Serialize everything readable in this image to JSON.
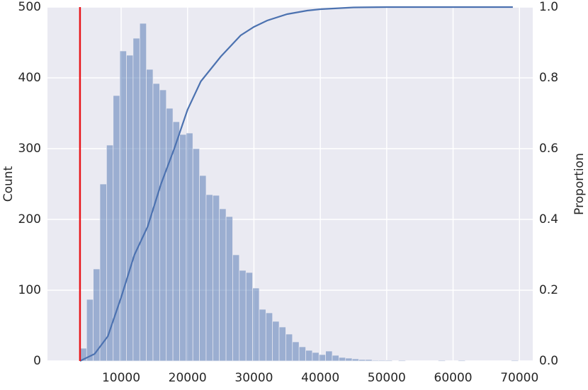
{
  "chart_data": {
    "type": "histogram",
    "bins": [
      3800,
      4800,
      5800,
      6800,
      7800,
      8800,
      9800,
      10800,
      11800,
      12800,
      13800,
      14800,
      15800,
      16800,
      17800,
      18800,
      19800,
      20800,
      21800,
      22800,
      23800,
      24800,
      25800,
      26800,
      27800,
      28800,
      29800,
      30800,
      31800,
      32800,
      33800,
      34800,
      35800,
      36800,
      37800,
      38800,
      39800,
      40800,
      41800,
      42800,
      43800,
      44800,
      45800,
      46800,
      47800,
      48800,
      49800,
      50800,
      51800,
      52800,
      53800,
      54800,
      55800,
      56800,
      57800,
      58800,
      59800,
      60800,
      61800,
      62800,
      63800,
      64800,
      65800,
      66800,
      67800,
      68800,
      69800
    ],
    "values": [
      18,
      87,
      130,
      250,
      305,
      375,
      438,
      432,
      456,
      477,
      412,
      392,
      383,
      357,
      338,
      320,
      322,
      300,
      262,
      235,
      234,
      215,
      204,
      150,
      128,
      125,
      103,
      73,
      68,
      56,
      48,
      38,
      27,
      20,
      15,
      12,
      9,
      14,
      8,
      5,
      4,
      3,
      2,
      2,
      1,
      1,
      1,
      0,
      1,
      0,
      0,
      0,
      0,
      0,
      1,
      0,
      0,
      1,
      0,
      0,
      0,
      0,
      0,
      0,
      0,
      1
    ],
    "color": "#4c72b0",
    "ecdf": {
      "type": "line",
      "axis": "y2",
      "color": "#4c72b0",
      "x": [
        3800,
        6000,
        8000,
        10000,
        12000,
        14000,
        16000,
        18000,
        20000,
        22000,
        25000,
        28000,
        30000,
        32000,
        35000,
        38000,
        40000,
        45000,
        50000,
        69000
      ],
      "values": [
        0,
        0.02,
        0.07,
        0.18,
        0.3,
        0.38,
        0.5,
        0.6,
        0.71,
        0.79,
        0.86,
        0.92,
        0.944,
        0.962,
        0.98,
        0.99,
        0.994,
        0.999,
        1.0,
        1.0
      ]
    },
    "vline": {
      "value": 3800,
      "color": "#e8161b"
    },
    "xlim": [
      -1100,
      72000
    ],
    "ylim": [
      0,
      500
    ],
    "y2lim": [
      0,
      1
    ],
    "xticks": [
      10000,
      20000,
      30000,
      40000,
      50000,
      60000,
      70000
    ],
    "yticks": [
      0,
      100,
      200,
      300,
      400,
      500
    ],
    "y2ticks": [
      {
        "value": 0,
        "label": "0.0"
      },
      {
        "value": 0.2,
        "label": "0.2"
      },
      {
        "value": 0.4,
        "label": "0.4"
      },
      {
        "value": 0.6,
        "label": "0.6"
      },
      {
        "value": 0.8,
        "label": "0.8"
      },
      {
        "value": 1,
        "label": "1.0"
      }
    ],
    "ylabel": "Count",
    "y2label": "Proportion",
    "grid": true
  }
}
